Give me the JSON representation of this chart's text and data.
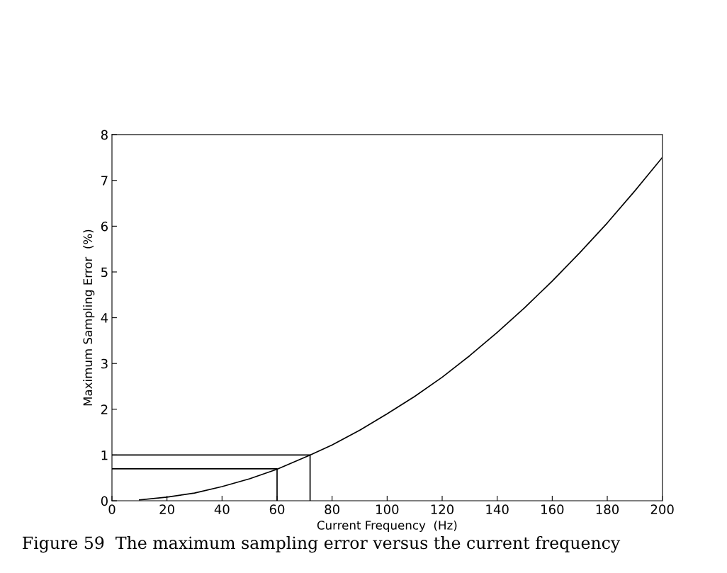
{
  "chart_data": {
    "type": "line",
    "xlabel": "Current Frequency  (Hz)",
    "ylabel": "Maximum Sampling Error  (%)",
    "xlim": [
      0,
      200
    ],
    "xticks": [
      0,
      20,
      40,
      60,
      80,
      100,
      120,
      140,
      160,
      180,
      200
    ],
    "ylim": [
      0,
      8
    ],
    "yticks": [
      0,
      1,
      2,
      3,
      4,
      5,
      6,
      7,
      8
    ],
    "grid": false,
    "marker": "none",
    "line_style": "solid",
    "series": [
      {
        "color": "#000000",
        "x": [
          10,
          20,
          30,
          40,
          50,
          60,
          72,
          80,
          90,
          100,
          110,
          120,
          130,
          140,
          150,
          160,
          170,
          180,
          190,
          200
        ],
        "values": [
          0.02,
          0.08,
          0.17,
          0.31,
          0.48,
          0.69,
          1.0,
          1.22,
          1.54,
          1.9,
          2.28,
          2.7,
          3.17,
          3.68,
          4.22,
          4.8,
          5.42,
          6.07,
          6.77,
          7.5
        ]
      },
      {
        "color": "#000000",
        "x": [
          0,
          72,
          72
        ],
        "values": [
          1.0,
          1.0,
          0
        ]
      },
      {
        "color": "#000000",
        "x": [
          0,
          60,
          60
        ],
        "values": [
          0.7,
          0.7,
          0
        ]
      }
    ],
    "annotations": [
      "Figure 59  The maximum sampling error versus the current frequency"
    ]
  }
}
